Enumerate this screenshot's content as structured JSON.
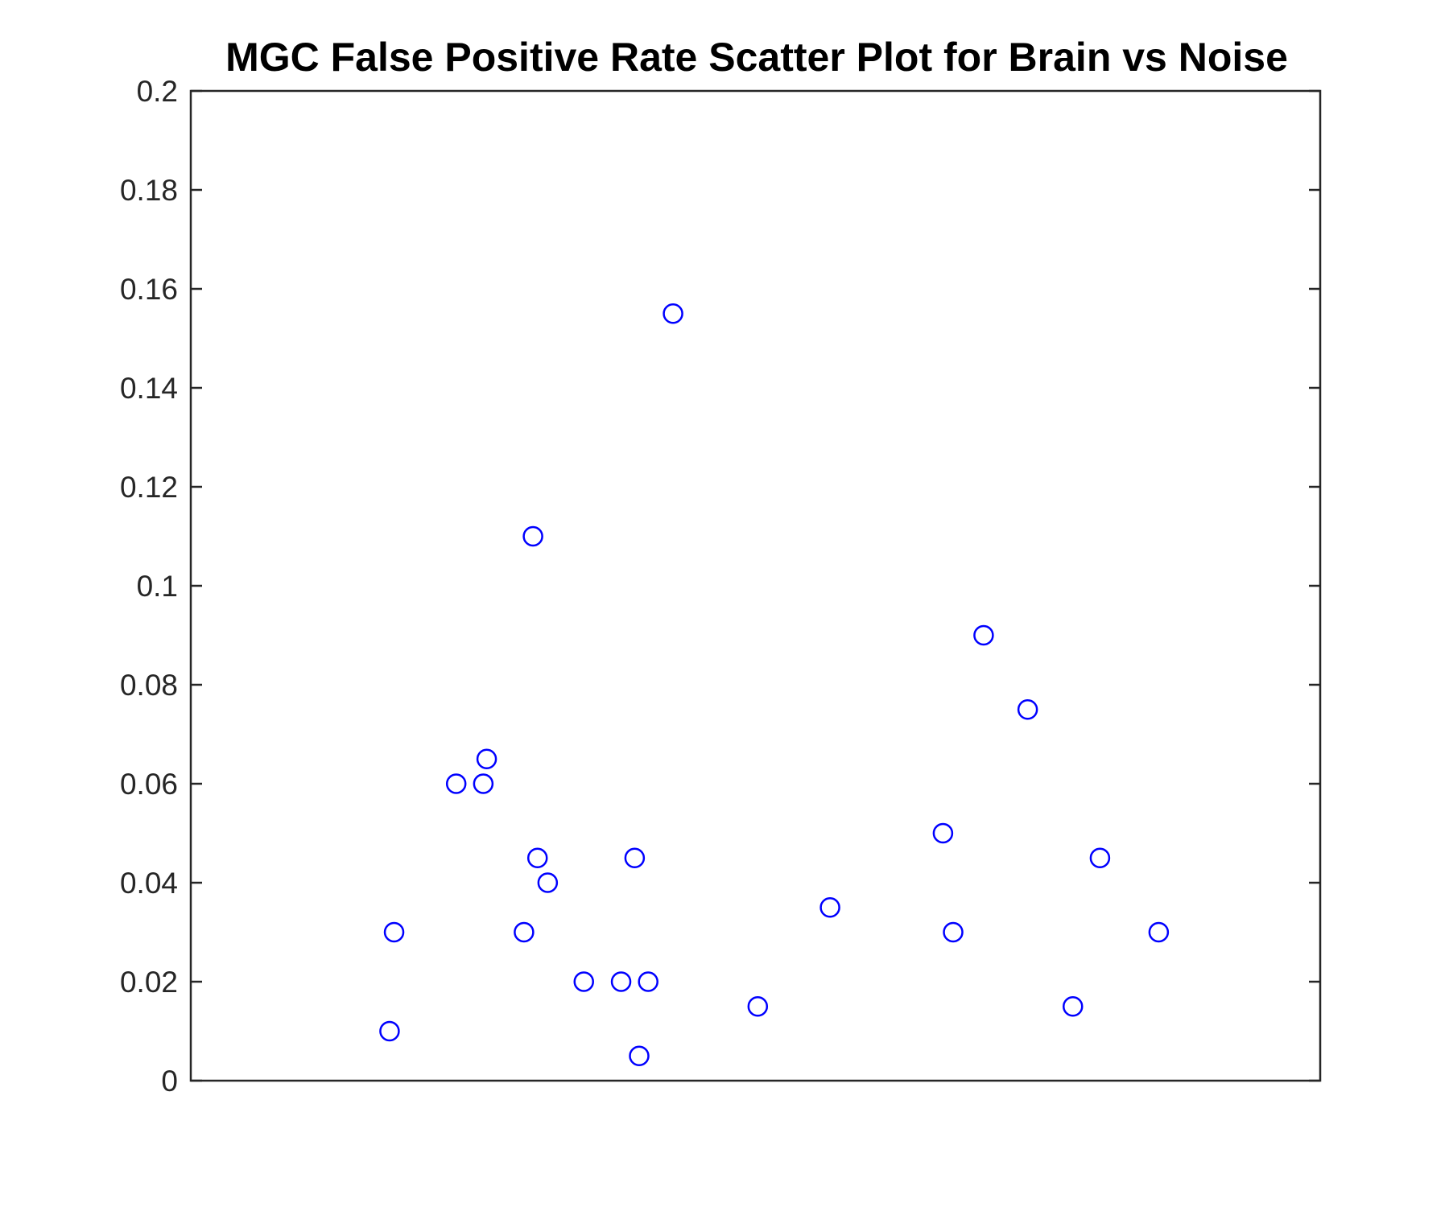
{
  "chart_data": {
    "type": "scatter",
    "title": "MGC False Positive Rate Scatter Plot for Brain vs Noise",
    "xlabel": "",
    "ylabel": "",
    "xlim": [
      0,
      1
    ],
    "ylim": [
      0,
      0.2
    ],
    "x_ticks_visible": false,
    "y_ticks": [
      0,
      0.02,
      0.04,
      0.06,
      0.08,
      0.1,
      0.12,
      0.14,
      0.16,
      0.18,
      0.2
    ],
    "y_tick_labels": [
      "0",
      "0.02",
      "0.04",
      "0.06",
      "0.08",
      "0.1",
      "0.12",
      "0.14",
      "0.16",
      "0.18",
      "0.2"
    ],
    "grid": false,
    "box": true,
    "marker": "circle-open",
    "marker_color": "#0000ff",
    "series": [
      {
        "points": [
          {
            "x": 0.176,
            "y": 0.01
          },
          {
            "x": 0.18,
            "y": 0.03
          },
          {
            "x": 0.235,
            "y": 0.06
          },
          {
            "x": 0.259,
            "y": 0.06
          },
          {
            "x": 0.262,
            "y": 0.065
          },
          {
            "x": 0.295,
            "y": 0.03
          },
          {
            "x": 0.303,
            "y": 0.11
          },
          {
            "x": 0.307,
            "y": 0.045
          },
          {
            "x": 0.316,
            "y": 0.04
          },
          {
            "x": 0.348,
            "y": 0.02
          },
          {
            "x": 0.381,
            "y": 0.02
          },
          {
            "x": 0.393,
            "y": 0.045
          },
          {
            "x": 0.397,
            "y": 0.005
          },
          {
            "x": 0.405,
            "y": 0.02
          },
          {
            "x": 0.427,
            "y": 0.155
          },
          {
            "x": 0.502,
            "y": 0.015
          },
          {
            "x": 0.566,
            "y": 0.035
          },
          {
            "x": 0.666,
            "y": 0.05
          },
          {
            "x": 0.675,
            "y": 0.03
          },
          {
            "x": 0.702,
            "y": 0.09
          },
          {
            "x": 0.741,
            "y": 0.075
          },
          {
            "x": 0.781,
            "y": 0.015
          },
          {
            "x": 0.805,
            "y": 0.045
          },
          {
            "x": 0.857,
            "y": 0.03
          }
        ]
      }
    ]
  }
}
